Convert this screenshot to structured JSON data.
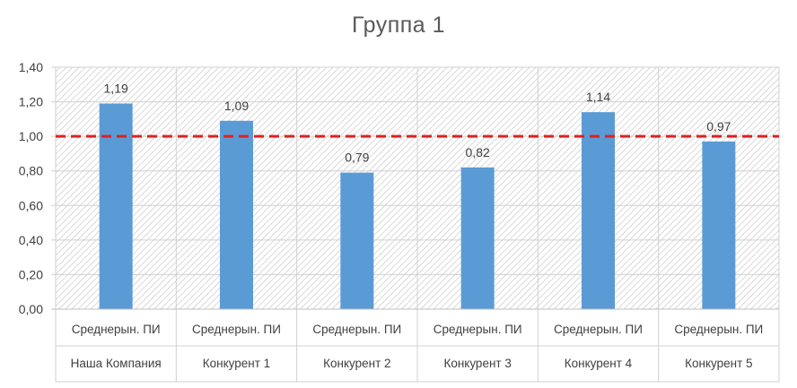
{
  "chart_data": {
    "type": "bar",
    "title": "Группа 1",
    "categories": [
      [
        "Среднерын. ПИ",
        "Наша Компания"
      ],
      [
        "Среднерын. ПИ",
        "Конкурент 1"
      ],
      [
        "Среднерын. ПИ",
        "Конкурент 2"
      ],
      [
        "Среднерын. ПИ",
        "Конкурент 3"
      ],
      [
        "Среднерын. ПИ",
        "Конкурент 4"
      ],
      [
        "Среднерын. ПИ",
        "Конкурент 5"
      ]
    ],
    "values": [
      1.19,
      1.09,
      0.79,
      0.82,
      1.14,
      0.97
    ],
    "value_labels": [
      "1,19",
      "1,09",
      "0,79",
      "0,82",
      "1,14",
      "0,97"
    ],
    "ylim": [
      0,
      1.4
    ],
    "yticks": [
      0,
      0.2,
      0.4,
      0.6,
      0.8,
      1.0,
      1.2,
      1.4
    ],
    "ytick_labels": [
      "0,00",
      "0,20",
      "0,40",
      "0,60",
      "0,80",
      "1,00",
      "1,20",
      "1,40"
    ],
    "reference_line": {
      "value": 1.0,
      "color": "#e02020",
      "style": "dashed"
    },
    "bar_color": "#5b9bd5",
    "plot_background": "hatched",
    "grid": true,
    "xlabel": "",
    "ylabel": ""
  }
}
